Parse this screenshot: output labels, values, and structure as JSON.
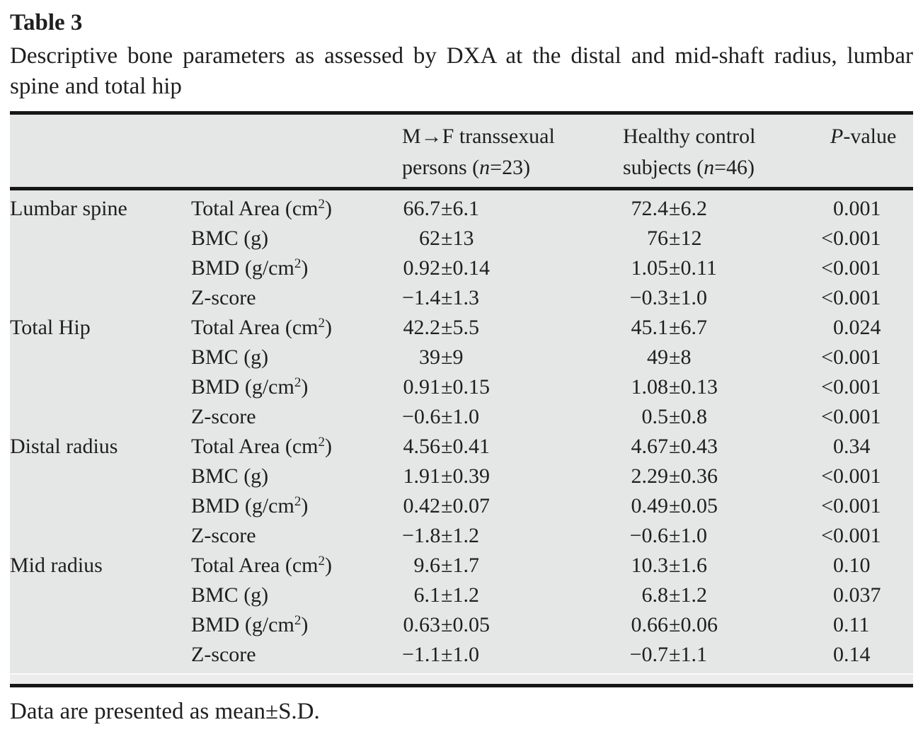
{
  "page": {
    "title": "Table 3",
    "caption": "Descriptive bone parameters as assessed by DXA at the distal and mid-shaft radius, lumbar spine and total hip",
    "footnote": "Data are presented as mean±S.D."
  },
  "colors": {
    "table_band": "#e5e6e6",
    "rule": "#161616",
    "text": "#1f1f1f",
    "page_background": "#ffffff"
  },
  "table": {
    "header": {
      "group": "",
      "param": "",
      "mf_line1": "M→F transsexual",
      "mf_line2_pre": "persons (",
      "mf_n": "n",
      "mf_line2_post": "=23)",
      "hc_line1": "Healthy control",
      "hc_line2_pre": "subjects (",
      "hc_n": "n",
      "hc_line2_post": "=46)",
      "p_italic": "P",
      "p_rest": "-value"
    },
    "rows": [
      {
        "group": "Lumbar spine",
        "param": "Total Area (cm",
        "param_sup": "2",
        "param_end": ")",
        "mf_mean": "66.7",
        "mf_sd": "±6.1",
        "hc_mean": "72.4",
        "hc_sd": "±6.2",
        "p_prefix": "",
        "p_num": "0.001"
      },
      {
        "group": "",
        "param": "BMC (g)",
        "param_sup": "",
        "param_end": "",
        "mf_mean": "62",
        "mf_sd": "±13",
        "hc_mean": "76",
        "hc_sd": "±12",
        "p_prefix": "<",
        "p_num": "0.001"
      },
      {
        "group": "",
        "param": "BMD (g/cm",
        "param_sup": "2",
        "param_end": ")",
        "mf_mean": "0.92",
        "mf_sd": "±0.14",
        "hc_mean": "1.05",
        "hc_sd": "±0.11",
        "p_prefix": "<",
        "p_num": "0.001"
      },
      {
        "group": "",
        "param": "Z-score",
        "param_sup": "",
        "param_end": "",
        "mf_mean": "−1.4",
        "mf_sd": "±1.3",
        "hc_mean": "−0.3",
        "hc_sd": "±1.0",
        "p_prefix": "<",
        "p_num": "0.001"
      },
      {
        "group": "Total Hip",
        "param": "Total Area (cm",
        "param_sup": "2",
        "param_end": ")",
        "mf_mean": "42.2",
        "mf_sd": "±5.5",
        "hc_mean": "45.1",
        "hc_sd": "±6.7",
        "p_prefix": "",
        "p_num": "0.024"
      },
      {
        "group": "",
        "param": "BMC (g)",
        "param_sup": "",
        "param_end": "",
        "mf_mean": "39",
        "mf_sd": "±9",
        "hc_mean": "49",
        "hc_sd": "±8",
        "p_prefix": "<",
        "p_num": "0.001"
      },
      {
        "group": "",
        "param": "BMD (g/cm",
        "param_sup": "2",
        "param_end": ")",
        "mf_mean": "0.91",
        "mf_sd": "±0.15",
        "hc_mean": "1.08",
        "hc_sd": "±0.13",
        "p_prefix": "<",
        "p_num": "0.001"
      },
      {
        "group": "",
        "param": "Z-score",
        "param_sup": "",
        "param_end": "",
        "mf_mean": "−0.6",
        "mf_sd": "±1.0",
        "hc_mean": "0.5",
        "hc_sd": "±0.8",
        "p_prefix": "<",
        "p_num": "0.001"
      },
      {
        "group": "Distal radius",
        "param": "Total Area (cm",
        "param_sup": "2",
        "param_end": ")",
        "mf_mean": "4.56",
        "mf_sd": "±0.41",
        "hc_mean": "4.67",
        "hc_sd": "±0.43",
        "p_prefix": "",
        "p_num": "0.34"
      },
      {
        "group": "",
        "param": "BMC (g)",
        "param_sup": "",
        "param_end": "",
        "mf_mean": "1.91",
        "mf_sd": "±0.39",
        "hc_mean": "2.29",
        "hc_sd": "±0.36",
        "p_prefix": "<",
        "p_num": "0.001"
      },
      {
        "group": "",
        "param": "BMD (g/cm",
        "param_sup": "2",
        "param_end": ")",
        "mf_mean": "0.42",
        "mf_sd": "±0.07",
        "hc_mean": "0.49",
        "hc_sd": "±0.05",
        "p_prefix": "<",
        "p_num": "0.001"
      },
      {
        "group": "",
        "param": "Z-score",
        "param_sup": "",
        "param_end": "",
        "mf_mean": "−1.8",
        "mf_sd": "±1.2",
        "hc_mean": "−0.6",
        "hc_sd": "±1.0",
        "p_prefix": "<",
        "p_num": "0.001"
      },
      {
        "group": "Mid radius",
        "param": "Total Area (cm",
        "param_sup": "2",
        "param_end": ")",
        "mf_mean": "9.6",
        "mf_sd": "±1.7",
        "hc_mean": "10.3",
        "hc_sd": "±1.6",
        "p_prefix": "",
        "p_num": "0.10"
      },
      {
        "group": "",
        "param": "BMC (g)",
        "param_sup": "",
        "param_end": "",
        "mf_mean": "6.1",
        "mf_sd": "±1.2",
        "hc_mean": "6.8",
        "hc_sd": "±1.2",
        "p_prefix": "",
        "p_num": "0.037"
      },
      {
        "group": "",
        "param": "BMD (g/cm",
        "param_sup": "2",
        "param_end": ")",
        "mf_mean": "0.63",
        "mf_sd": "±0.05",
        "hc_mean": "0.66",
        "hc_sd": "±0.06",
        "p_prefix": "",
        "p_num": "0.11"
      },
      {
        "group": "",
        "param": "Z-score",
        "param_sup": "",
        "param_end": "",
        "mf_mean": "−1.1",
        "mf_sd": "±1.0",
        "hc_mean": "−0.7",
        "hc_sd": "±1.1",
        "p_prefix": "",
        "p_num": "0.14"
      }
    ]
  }
}
